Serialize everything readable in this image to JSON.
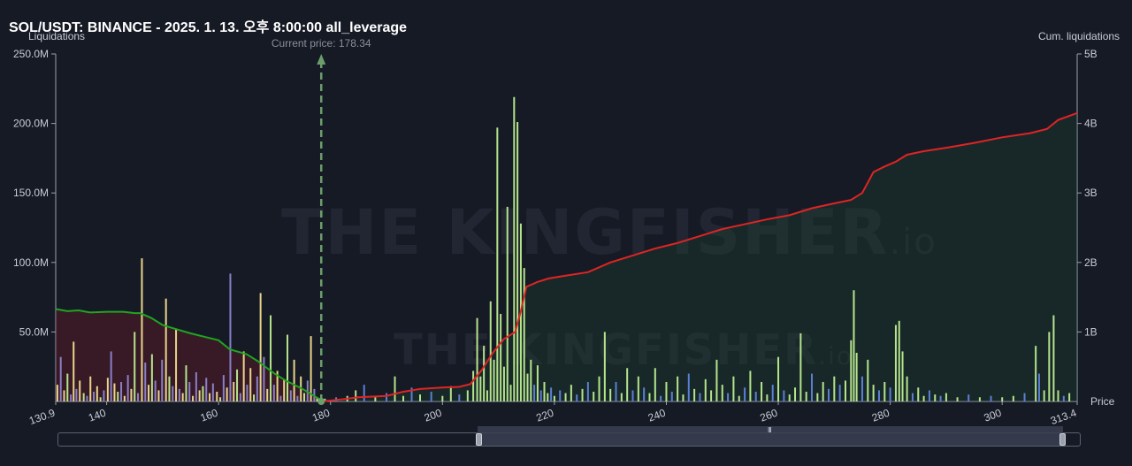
{
  "header": {
    "title": "SOL/USDT: BINANCE - 2025. 1. 13. 오후 8:00:00 all_leverage",
    "left_axis_title": "Liquidations",
    "right_axis_title": "Cum. liquidations",
    "x_axis_title": "Price",
    "current_price_label": "Current price: 178.34"
  },
  "watermark": {
    "text": "THE KINGFISHER",
    "suffix": ".io"
  },
  "colors": {
    "background": "#161a25",
    "short_bars": "#b5e48c",
    "long_bars": "#8a7fc8",
    "blue_bars": "#5b7fd4",
    "yellow_bars": "#e8d48a",
    "red_line": "#e02424",
    "green_line": "#1fa51f",
    "current_price": "#6b9e6b"
  },
  "chart_data": {
    "type": "bar",
    "current_price": 178.34,
    "x_range": [
      130.9,
      313.4
    ],
    "x_ticks": [
      "130.9",
      "140",
      "160",
      "180",
      "200",
      "220",
      "240",
      "260",
      "280",
      "300",
      "313.4"
    ],
    "left_axis": {
      "label": "Liquidations",
      "ticks": [
        "50.0M",
        "100.0M",
        "150.0M",
        "200.0M",
        "250.0M"
      ],
      "range": [
        0,
        250
      ]
    },
    "right_axis": {
      "label": "Cum. liquidations",
      "ticks": [
        "1B",
        "2B",
        "3B",
        "4B",
        "5B"
      ],
      "range": [
        0,
        5
      ]
    },
    "series": [
      {
        "name": "cum_long",
        "kind": "line",
        "color": "#1fa51f",
        "points": [
          [
            130.9,
            1.33
          ],
          [
            133,
            1.3
          ],
          [
            135,
            1.31
          ],
          [
            137,
            1.28
          ],
          [
            140,
            1.29
          ],
          [
            143,
            1.29
          ],
          [
            145,
            1.27
          ],
          [
            146,
            1.27
          ],
          [
            148,
            1.2
          ],
          [
            150,
            1.1
          ],
          [
            152,
            1.05
          ],
          [
            155,
            0.98
          ],
          [
            158,
            0.92
          ],
          [
            160,
            0.88
          ],
          [
            162,
            0.75
          ],
          [
            165,
            0.68
          ],
          [
            167,
            0.58
          ],
          [
            170,
            0.4
          ],
          [
            172,
            0.3
          ],
          [
            175,
            0.18
          ],
          [
            178.34,
            0.02
          ]
        ]
      },
      {
        "name": "cum_short",
        "kind": "line",
        "color": "#e02424",
        "points": [
          [
            178.34,
            0.0
          ],
          [
            182,
            0.03
          ],
          [
            185,
            0.06
          ],
          [
            190,
            0.08
          ],
          [
            193,
            0.14
          ],
          [
            196,
            0.18
          ],
          [
            200,
            0.2
          ],
          [
            203,
            0.21
          ],
          [
            205,
            0.25
          ],
          [
            207,
            0.45
          ],
          [
            209,
            0.7
          ],
          [
            211,
            0.9
          ],
          [
            213,
            1.0
          ],
          [
            214,
            1.3
          ],
          [
            215,
            1.65
          ],
          [
            217,
            1.72
          ],
          [
            219,
            1.77
          ],
          [
            222,
            1.81
          ],
          [
            226,
            1.86
          ],
          [
            230,
            2.0
          ],
          [
            234,
            2.1
          ],
          [
            238,
            2.2
          ],
          [
            242,
            2.28
          ],
          [
            246,
            2.38
          ],
          [
            250,
            2.48
          ],
          [
            254,
            2.55
          ],
          [
            258,
            2.62
          ],
          [
            262,
            2.68
          ],
          [
            266,
            2.78
          ],
          [
            270,
            2.85
          ],
          [
            273,
            2.9
          ],
          [
            275,
            3.0
          ],
          [
            277,
            3.3
          ],
          [
            279,
            3.38
          ],
          [
            281,
            3.45
          ],
          [
            283,
            3.55
          ],
          [
            286,
            3.6
          ],
          [
            290,
            3.65
          ],
          [
            295,
            3.72
          ],
          [
            300,
            3.8
          ],
          [
            305,
            3.86
          ],
          [
            308,
            3.92
          ],
          [
            310,
            4.05
          ],
          [
            313.4,
            4.15
          ]
        ]
      },
      {
        "name": "long_bars",
        "kind": "bars",
        "points": [
          [
            131.2,
            12
          ],
          [
            131.8,
            32
          ],
          [
            132.4,
            8
          ],
          [
            133.0,
            20
          ],
          [
            133.6,
            5
          ],
          [
            134.1,
            43
          ],
          [
            134.6,
            9
          ],
          [
            135.2,
            15
          ],
          [
            135.9,
            6
          ],
          [
            136.5,
            4
          ],
          [
            137.1,
            18
          ],
          [
            137.7,
            7
          ],
          [
            138.3,
            11
          ],
          [
            138.9,
            3
          ],
          [
            139.5,
            8
          ],
          [
            140.2,
            17
          ],
          [
            140.8,
            36
          ],
          [
            141.4,
            13
          ],
          [
            142.0,
            7
          ],
          [
            142.6,
            14
          ],
          [
            143.2,
            4
          ],
          [
            143.8,
            19
          ],
          [
            144.4,
            9
          ],
          [
            145.0,
            50
          ],
          [
            145.6,
            6
          ],
          [
            146.3,
            103
          ],
          [
            146.9,
            28
          ],
          [
            147.5,
            12
          ],
          [
            148.1,
            34
          ],
          [
            148.7,
            15
          ],
          [
            149.3,
            8
          ],
          [
            149.9,
            30
          ],
          [
            150.6,
            74
          ],
          [
            151.2,
            18
          ],
          [
            151.8,
            11
          ],
          [
            152.4,
            52
          ],
          [
            153.0,
            9
          ],
          [
            153.6,
            6
          ],
          [
            154.2,
            26
          ],
          [
            154.8,
            14
          ],
          [
            155.4,
            4
          ],
          [
            156.0,
            21
          ],
          [
            156.6,
            8
          ],
          [
            157.2,
            11
          ],
          [
            157.8,
            17
          ],
          [
            158.4,
            6
          ],
          [
            159.0,
            13
          ],
          [
            159.7,
            7
          ],
          [
            160.3,
            3
          ],
          [
            160.9,
            19
          ],
          [
            161.5,
            10
          ],
          [
            162.1,
            92
          ],
          [
            162.7,
            14
          ],
          [
            163.3,
            23
          ],
          [
            163.9,
            6
          ],
          [
            164.5,
            36
          ],
          [
            165.1,
            12
          ],
          [
            165.7,
            24
          ],
          [
            166.3,
            5
          ],
          [
            166.9,
            18
          ],
          [
            167.5,
            78
          ],
          [
            168.1,
            32
          ],
          [
            168.7,
            9
          ],
          [
            169.3,
            62
          ],
          [
            169.9,
            12
          ],
          [
            170.5,
            22
          ],
          [
            171.1,
            4
          ],
          [
            171.7,
            16
          ],
          [
            172.3,
            48
          ],
          [
            172.9,
            8
          ],
          [
            173.5,
            30
          ],
          [
            174.1,
            4
          ],
          [
            174.7,
            18
          ],
          [
            175.3,
            6
          ],
          [
            175.9,
            15
          ],
          [
            176.5,
            47
          ],
          [
            177.1,
            9
          ],
          [
            177.6,
            3
          ]
        ]
      },
      {
        "name": "short_bars",
        "kind": "bars",
        "points": [
          [
            179.0,
            2
          ],
          [
            181.0,
            3
          ],
          [
            183.0,
            4
          ],
          [
            184.5,
            8
          ],
          [
            186.0,
            12
          ],
          [
            188.0,
            3
          ],
          [
            190.0,
            6
          ],
          [
            191.5,
            18
          ],
          [
            193.0,
            4
          ],
          [
            194.5,
            10
          ],
          [
            196.0,
            5
          ],
          [
            198.0,
            7
          ],
          [
            200.0,
            4
          ],
          [
            201.5,
            11
          ],
          [
            203.0,
            5
          ],
          [
            204.5,
            8
          ],
          [
            205.5,
            22
          ],
          [
            206.2,
            60
          ],
          [
            206.8,
            18
          ],
          [
            207.4,
            40
          ],
          [
            208.0,
            8
          ],
          [
            208.6,
            72
          ],
          [
            209.2,
            30
          ],
          [
            209.8,
            197
          ],
          [
            210.4,
            63
          ],
          [
            211.0,
            25
          ],
          [
            211.6,
            140
          ],
          [
            212.2,
            12
          ],
          [
            212.8,
            219
          ],
          [
            213.4,
            201
          ],
          [
            214.0,
            128
          ],
          [
            214.6,
            96
          ],
          [
            215.2,
            20
          ],
          [
            215.8,
            30
          ],
          [
            216.4,
            12
          ],
          [
            217.0,
            26
          ],
          [
            217.6,
            8
          ],
          [
            218.2,
            14
          ],
          [
            218.8,
            6
          ],
          [
            219.4,
            10
          ],
          [
            220.0,
            4
          ],
          [
            221,
            8
          ],
          [
            222,
            6
          ],
          [
            223,
            12
          ],
          [
            224,
            5
          ],
          [
            225,
            9
          ],
          [
            226,
            14
          ],
          [
            227,
            7
          ],
          [
            228,
            18
          ],
          [
            229,
            50
          ],
          [
            230,
            9
          ],
          [
            231,
            14
          ],
          [
            232,
            6
          ],
          [
            233,
            24
          ],
          [
            234,
            8
          ],
          [
            235,
            18
          ],
          [
            236,
            10
          ],
          [
            237,
            6
          ],
          [
            238,
            24
          ],
          [
            239,
            4
          ],
          [
            240,
            14
          ],
          [
            241,
            7
          ],
          [
            242,
            18
          ],
          [
            243,
            5
          ],
          [
            244,
            20
          ],
          [
            245,
            9
          ],
          [
            246,
            6
          ],
          [
            247,
            16
          ],
          [
            248,
            8
          ],
          [
            249,
            30
          ],
          [
            250,
            12
          ],
          [
            251,
            6
          ],
          [
            252,
            18
          ],
          [
            253,
            4
          ],
          [
            254,
            10
          ],
          [
            255,
            22
          ],
          [
            256,
            7
          ],
          [
            257,
            14
          ],
          [
            258,
            5
          ],
          [
            259,
            12
          ],
          [
            260,
            32
          ],
          [
            261,
            8
          ],
          [
            262,
            5
          ],
          [
            263,
            10
          ],
          [
            264,
            49
          ],
          [
            265,
            7
          ],
          [
            266,
            20
          ],
          [
            267,
            6
          ],
          [
            268,
            14
          ],
          [
            269,
            9
          ],
          [
            270,
            18
          ],
          [
            271,
            12
          ],
          [
            272,
            15
          ],
          [
            273,
            44
          ],
          [
            273.5,
            80
          ],
          [
            274,
            35
          ],
          [
            275,
            18
          ],
          [
            276,
            30
          ],
          [
            277,
            12
          ],
          [
            278,
            8
          ],
          [
            279,
            14
          ],
          [
            280,
            10
          ],
          [
            281,
            55
          ],
          [
            281.6,
            58
          ],
          [
            282.2,
            36
          ],
          [
            283,
            18
          ],
          [
            284,
            6
          ],
          [
            285,
            10
          ],
          [
            286,
            4
          ],
          [
            287,
            8
          ],
          [
            288,
            5
          ],
          [
            289,
            4
          ],
          [
            290,
            6
          ],
          [
            292,
            3
          ],
          [
            294,
            5
          ],
          [
            296,
            3
          ],
          [
            298,
            4
          ],
          [
            300,
            3
          ],
          [
            302,
            4
          ],
          [
            304,
            6
          ],
          [
            306,
            40
          ],
          [
            306.6,
            20
          ],
          [
            307.5,
            8
          ],
          [
            308.4,
            50
          ],
          [
            309.2,
            62
          ],
          [
            310,
            8
          ],
          [
            311,
            4
          ],
          [
            312,
            6
          ]
        ]
      }
    ]
  }
}
